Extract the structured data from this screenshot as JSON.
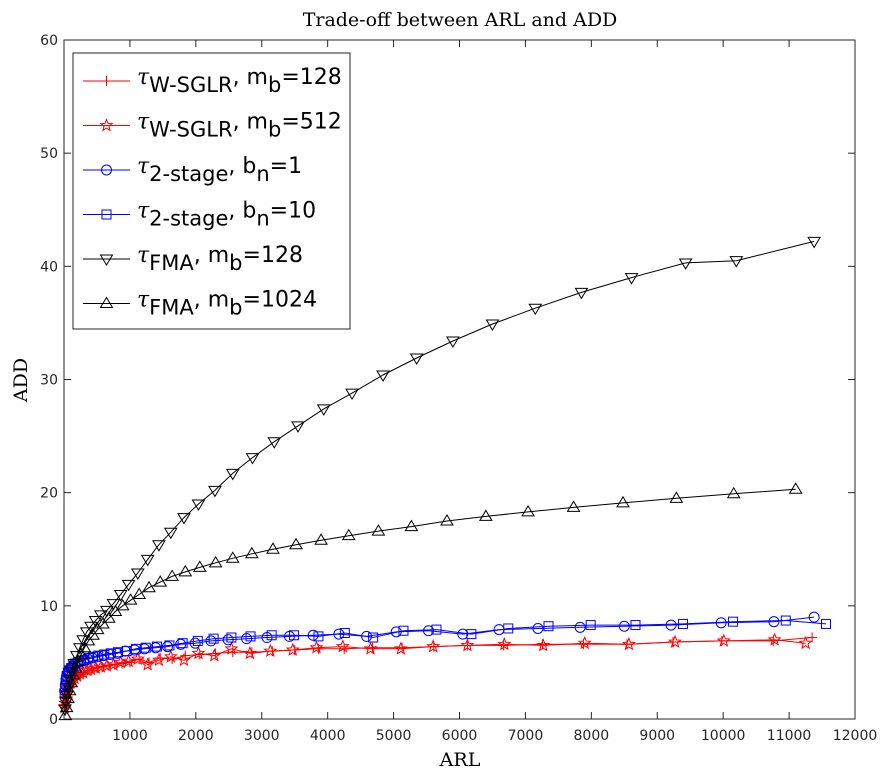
{
  "chart_data": {
    "type": "line",
    "title": "Trade-off between ARL and ADD",
    "xlabel": "ARL",
    "ylabel": "ADD",
    "xlim": [
      0,
      12000
    ],
    "ylim": [
      0,
      60
    ],
    "xticks": [
      1000,
      2000,
      3000,
      4000,
      5000,
      6000,
      7000,
      8000,
      9000,
      10000,
      11000,
      12000
    ],
    "yticks": [
      0,
      10,
      20,
      30,
      40,
      50,
      60
    ],
    "grid": false,
    "legend_position": "top-left",
    "series": [
      {
        "name": "τW-SGLR, mb=128",
        "legend_parts": {
          "sym": "τ",
          "sub": "W-SGLR",
          "mid": ", m",
          "sub2": "b",
          "tail": "=128"
        },
        "color": "#ff0000",
        "marker": "plus",
        "x": [
          10,
          20,
          30,
          40,
          50,
          70,
          90,
          110,
          140,
          170,
          210,
          250,
          300,
          360,
          420,
          500,
          580,
          670,
          770,
          880,
          1000,
          1140,
          1290,
          1460,
          1640,
          1840,
          2060,
          2300,
          2560,
          2850,
          3160,
          3500,
          3860,
          4250,
          4680,
          5130,
          5610,
          6120,
          6670,
          7260,
          7880,
          8540,
          9240,
          9980,
          10760,
          11350
        ],
        "y": [
          1.2,
          1.6,
          2.0,
          2.4,
          2.7,
          3.0,
          3.2,
          3.4,
          3.6,
          3.8,
          3.9,
          4.0,
          4.1,
          4.3,
          4.3,
          4.5,
          4.6,
          4.7,
          4.8,
          4.9,
          5.0,
          5.3,
          5.0,
          5.4,
          5.3,
          5.6,
          5.7,
          5.8,
          5.9,
          5.9,
          6.0,
          6.1,
          6.2,
          6.2,
          6.3,
          6.3,
          6.4,
          6.5,
          6.5,
          6.6,
          6.6,
          6.6,
          6.8,
          6.9,
          6.9,
          7.2
        ]
      },
      {
        "name": "τW-SGLR, mb=512",
        "legend_parts": {
          "sym": "τ",
          "sub": "W-SGLR",
          "mid": ", m",
          "sub2": "b",
          "tail": "=512"
        },
        "color": "#ff0000",
        "marker": "star",
        "x": [
          10,
          20,
          30,
          40,
          60,
          80,
          100,
          130,
          160,
          200,
          240,
          290,
          350,
          410,
          480,
          560,
          650,
          750,
          860,
          980,
          1120,
          1270,
          1440,
          1620,
          1820,
          2040,
          2280,
          2540,
          2820,
          3130,
          3470,
          3830,
          4230,
          4650,
          5110,
          5600,
          6120,
          6680,
          7270,
          7900,
          8570,
          9270,
          10010,
          10780,
          11250
        ],
        "y": [
          1.0,
          1.4,
          1.8,
          2.2,
          2.6,
          2.9,
          3.2,
          3.4,
          3.6,
          3.8,
          4.0,
          4.1,
          4.3,
          4.4,
          4.5,
          4.6,
          4.7,
          4.8,
          5.0,
          5.1,
          5.3,
          4.8,
          5.2,
          5.5,
          5.2,
          5.8,
          5.6,
          6.2,
          5.8,
          6.0,
          6.1,
          6.3,
          6.4,
          6.2,
          6.2,
          6.4,
          6.5,
          6.6,
          6.5,
          6.7,
          6.6,
          6.8,
          6.9,
          7.0,
          6.7
        ]
      },
      {
        "name": "τ2-stage, bn=1",
        "legend_parts": {
          "sym": "τ",
          "sub": "2-stage",
          "mid": ", b",
          "sub2": "n",
          "tail": "=1"
        },
        "color": "#0000ff",
        "marker": "circle",
        "x": [
          10,
          20,
          30,
          40,
          60,
          80,
          100,
          130,
          160,
          200,
          250,
          300,
          360,
          430,
          510,
          600,
          700,
          810,
          930,
          1070,
          1220,
          1390,
          1570,
          1770,
          1990,
          2230,
          2490,
          2770,
          3080,
          3420,
          3780,
          4170,
          4590,
          5040,
          5530,
          6050,
          6600,
          7190,
          7830,
          8500,
          9210,
          9970,
          10770,
          11380
        ],
        "y": [
          2.5,
          3.0,
          3.5,
          3.8,
          4.1,
          4.3,
          4.5,
          4.6,
          4.8,
          5.0,
          5.1,
          5.2,
          5.3,
          5.4,
          5.5,
          5.6,
          5.7,
          5.8,
          6.0,
          6.1,
          6.2,
          6.3,
          6.4,
          6.6,
          6.7,
          6.9,
          7.0,
          7.1,
          7.2,
          7.3,
          7.4,
          7.5,
          7.3,
          7.7,
          7.8,
          7.5,
          7.9,
          8.0,
          8.1,
          8.2,
          8.3,
          8.5,
          8.6,
          9.0
        ]
      },
      {
        "name": "τ2-stage, bn=10",
        "legend_parts": {
          "sym": "τ",
          "sub": "2-stage",
          "mid": ", b",
          "sub2": "n",
          "tail": "=10"
        },
        "color": "#0000ff",
        "marker": "square",
        "x": [
          10,
          20,
          30,
          40,
          60,
          80,
          110,
          140,
          170,
          210,
          260,
          310,
          370,
          440,
          520,
          610,
          710,
          820,
          950,
          1090,
          1240,
          1410,
          1600,
          1800,
          2030,
          2270,
          2540,
          2830,
          3150,
          3490,
          3860,
          4260,
          4690,
          5150,
          5650,
          6180,
          6740,
          7350,
          7990,
          8670,
          9390,
          10150,
          10950,
          11560
        ],
        "y": [
          2.3,
          2.9,
          3.4,
          3.8,
          4.1,
          4.3,
          4.5,
          4.7,
          4.9,
          5.0,
          5.1,
          5.2,
          5.4,
          5.5,
          5.6,
          5.7,
          5.8,
          5.9,
          6.0,
          6.2,
          6.3,
          6.4,
          6.5,
          6.7,
          6.9,
          7.1,
          7.2,
          7.3,
          7.4,
          7.4,
          7.3,
          7.6,
          7.2,
          7.8,
          7.9,
          7.5,
          8.0,
          8.2,
          8.3,
          8.3,
          8.4,
          8.6,
          8.7,
          8.4
        ]
      },
      {
        "name": "τFMA, mb=128",
        "legend_parts": {
          "sym": "τ",
          "sub": "FMA",
          "mid": ", m",
          "sub2": "b",
          "tail": "=128"
        },
        "color": "#000000",
        "marker": "triangle-down",
        "x": [
          15,
          30,
          45,
          65,
          90,
          120,
          155,
          195,
          240,
          290,
          345,
          410,
          480,
          560,
          650,
          750,
          860,
          980,
          1120,
          1270,
          1440,
          1620,
          1820,
          2040,
          2290,
          2560,
          2860,
          3190,
          3550,
          3940,
          4370,
          4840,
          5350,
          5900,
          6500,
          7150,
          7850,
          8610,
          9430,
          10200,
          11380
        ],
        "y": [
          0.9,
          1.5,
          2.1,
          2.8,
          3.5,
          4.2,
          4.9,
          5.6,
          6.3,
          7.0,
          7.7,
          8.2,
          8.7,
          9.2,
          9.6,
          10.2,
          11.0,
          11.9,
          12.9,
          14.1,
          15.4,
          16.5,
          17.8,
          19.0,
          20.2,
          21.7,
          23.1,
          24.5,
          25.9,
          27.4,
          28.8,
          30.4,
          31.9,
          33.4,
          34.9,
          36.3,
          37.7,
          39.0,
          40.3,
          40.5,
          42.2
        ]
      },
      {
        "name": "τFMA, mb=1024",
        "legend_parts": {
          "sym": "τ",
          "sub": "FMA",
          "mid": ", m",
          "sub2": "b",
          "tail": "=1024"
        },
        "color": "#000000",
        "marker": "triangle-up",
        "x": [
          20,
          40,
          60,
          85,
          110,
          140,
          175,
          215,
          260,
          310,
          370,
          440,
          510,
          590,
          680,
          780,
          890,
          1010,
          1140,
          1290,
          1460,
          1640,
          1840,
          2060,
          2300,
          2560,
          2850,
          3170,
          3520,
          3900,
          4320,
          4770,
          5270,
          5810,
          6400,
          7040,
          7730,
          8480,
          9290,
          10160,
          11100
        ],
        "y": [
          0.3,
          1.0,
          1.8,
          2.5,
          3.2,
          3.9,
          4.5,
          5.1,
          5.7,
          6.3,
          6.9,
          7.4,
          7.9,
          8.4,
          8.9,
          9.5,
          10.0,
          10.5,
          11.0,
          11.6,
          12.1,
          12.6,
          13.0,
          13.4,
          13.8,
          14.2,
          14.6,
          15.0,
          15.4,
          15.8,
          16.2,
          16.6,
          17.0,
          17.5,
          17.9,
          18.3,
          18.7,
          19.1,
          19.5,
          19.9,
          20.3
        ]
      }
    ]
  }
}
